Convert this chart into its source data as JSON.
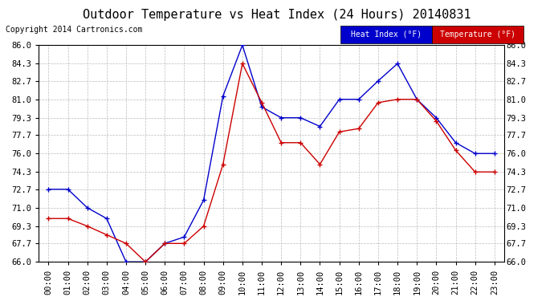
{
  "title": "Outdoor Temperature vs Heat Index (24 Hours) 20140831",
  "copyright": "Copyright 2014 Cartronics.com",
  "legend_heat": "Heat Index (°F)",
  "legend_temp": "Temperature (°F)",
  "x_labels": [
    "00:00",
    "01:00",
    "02:00",
    "03:00",
    "04:00",
    "05:00",
    "06:00",
    "07:00",
    "08:00",
    "09:00",
    "10:00",
    "11:00",
    "12:00",
    "13:00",
    "14:00",
    "15:00",
    "16:00",
    "17:00",
    "18:00",
    "19:00",
    "20:00",
    "21:00",
    "22:00",
    "23:00"
  ],
  "heat_index": [
    72.7,
    72.7,
    71.0,
    70.0,
    66.0,
    66.0,
    67.7,
    68.3,
    71.7,
    81.3,
    86.0,
    80.3,
    79.3,
    79.3,
    78.5,
    81.0,
    81.0,
    82.7,
    84.3,
    81.0,
    79.3,
    77.0,
    76.0,
    76.0
  ],
  "temperature": [
    70.0,
    70.0,
    69.3,
    68.5,
    67.7,
    66.0,
    67.7,
    67.7,
    69.3,
    75.0,
    84.3,
    80.7,
    77.0,
    77.0,
    75.0,
    78.0,
    78.3,
    80.7,
    81.0,
    81.0,
    79.0,
    76.3,
    74.3,
    74.3
  ],
  "ylim_min": 66.0,
  "ylim_max": 86.0,
  "yticks": [
    66.0,
    67.7,
    69.3,
    71.0,
    72.7,
    74.3,
    76.0,
    77.7,
    79.3,
    81.0,
    82.7,
    84.3,
    86.0
  ],
  "heat_color": "#0000cc",
  "temp_color": "#cc0000",
  "bg_color": "#ffffff",
  "grid_color": "#bbbbbb",
  "title_fontsize": 11,
  "tick_fontsize": 7.5,
  "copyright_fontsize": 7
}
